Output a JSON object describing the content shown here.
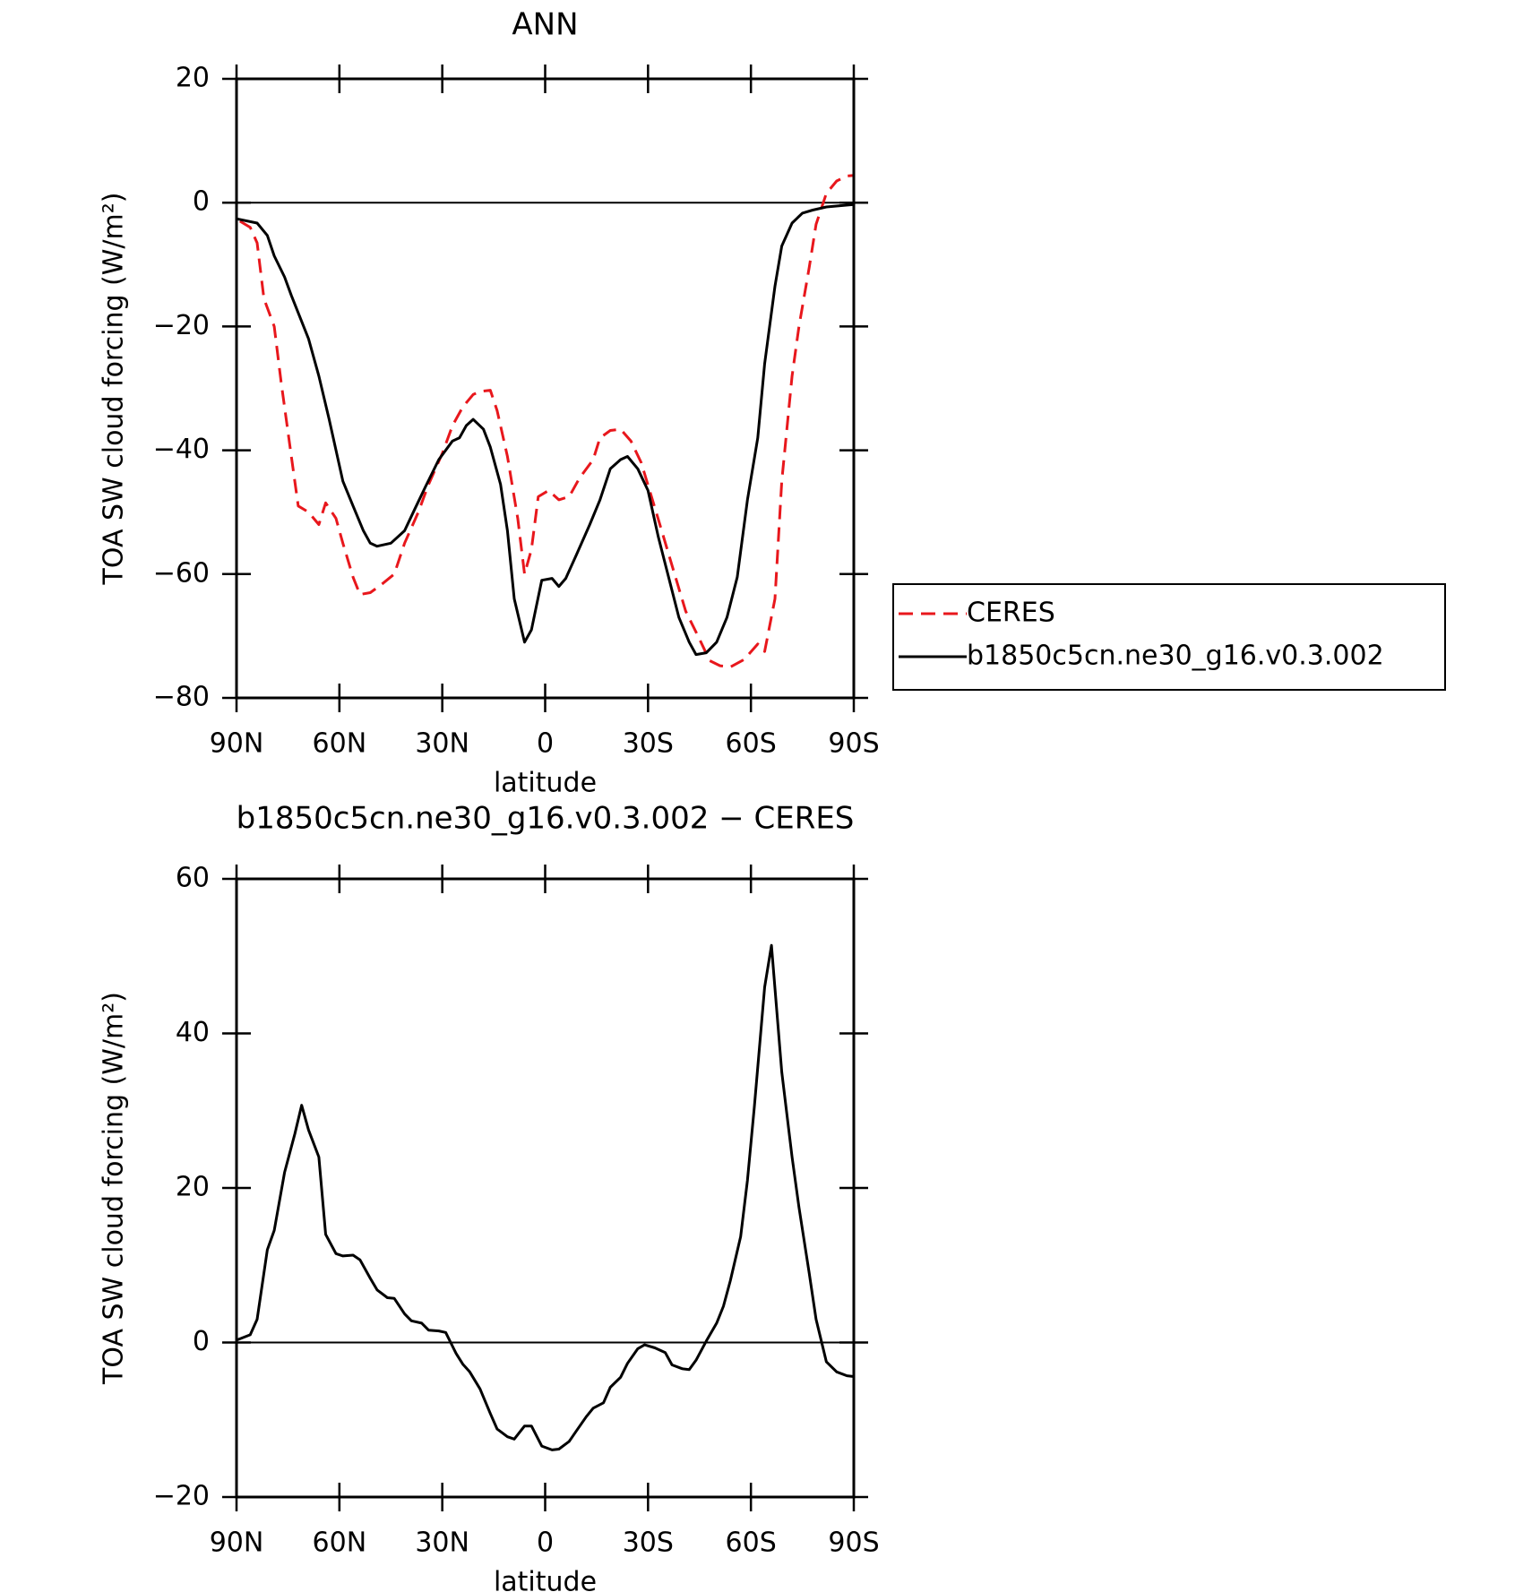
{
  "chart_data": [
    {
      "type": "line",
      "title": "ANN",
      "xlabel": "latitude",
      "ylabel": "TOA SW cloud forcing (W/m²)",
      "xlim": [
        90,
        -90
      ],
      "ylim": [
        -80,
        20
      ],
      "xticks": [
        {
          "value": 90,
          "label": "90N"
        },
        {
          "value": 60,
          "label": "60N"
        },
        {
          "value": 30,
          "label": "30N"
        },
        0,
        {
          "value": -30,
          "label": "30S"
        },
        {
          "value": -60,
          "label": "60S"
        },
        {
          "value": -90,
          "label": "90S"
        }
      ],
      "yticks": [
        {
          "value": -80,
          "label": "−80"
        },
        {
          "value": -60,
          "label": "−60"
        },
        {
          "value": -40,
          "label": "−40"
        },
        {
          "value": -20,
          "label": "−20"
        },
        0,
        20
      ],
      "legend": "right",
      "series": [
        {
          "name": "CERES",
          "color": "#e8171c",
          "linestyle": "dashed",
          "x": [
            89,
            86,
            84,
            82,
            79,
            77,
            74,
            72,
            69,
            66,
            64,
            61,
            59,
            56,
            54,
            51,
            48,
            44,
            41,
            37,
            34,
            30,
            27,
            24,
            21,
            19,
            16,
            14,
            11,
            8,
            6,
            4,
            2,
            -1,
            -4,
            -7,
            -10,
            -14,
            -16,
            -19,
            -22,
            -25,
            -28,
            -31,
            -34,
            -38,
            -41,
            -45,
            -48,
            -51,
            -54,
            -58,
            -62,
            -64,
            -67,
            -69,
            -72,
            -74,
            -77,
            -79,
            -82,
            -85,
            -88,
            -90
          ],
          "values": [
            -3,
            -4,
            -6.5,
            -15.5,
            -20,
            -29,
            -41,
            -49,
            -50,
            -52,
            -48.5,
            -51,
            -55,
            -60.5,
            -63.3,
            -63,
            -61.8,
            -60,
            -55,
            -50,
            -45.5,
            -40.5,
            -36,
            -33,
            -31,
            -30.5,
            -30.3,
            -33.6,
            -41,
            -51,
            -60,
            -56,
            -47.5,
            -46.5,
            -48,
            -47.5,
            -44.5,
            -41.5,
            -38,
            -36.8,
            -36.6,
            -38.5,
            -42,
            -47.5,
            -53,
            -60.5,
            -66,
            -70.5,
            -74,
            -74.8,
            -75,
            -73.8,
            -71.3,
            -72.5,
            -64,
            -45,
            -28,
            -20,
            -10.5,
            -3.5,
            1.5,
            3.5,
            4.3,
            4.4
          ]
        },
        {
          "name": "b1850c5cn.ne30_g16.v0.3.002",
          "color": "#000000",
          "linestyle": "solid",
          "x": [
            90,
            84,
            81,
            79,
            76,
            74,
            69,
            66,
            63,
            59,
            56,
            53,
            51,
            49,
            45,
            41,
            38,
            35,
            31,
            27,
            25,
            23,
            21,
            18,
            16,
            13,
            11,
            9,
            6,
            4,
            1,
            -2,
            -4,
            -6,
            -9,
            -13,
            -16,
            -19,
            -22,
            -24,
            -27,
            -30,
            -33,
            -36,
            -39,
            -42,
            -44,
            -47,
            -50,
            -53,
            -56,
            -59,
            -62,
            -64,
            -67,
            -69,
            -72,
            -75,
            -78,
            -82,
            -90
          ],
          "values": [
            -2.6,
            -3.3,
            -5.3,
            -8.6,
            -12,
            -15,
            -22,
            -28,
            -35,
            -45,
            -49,
            -53,
            -55,
            -55.5,
            -55,
            -53,
            -49.5,
            -46,
            -41.5,
            -38.5,
            -38,
            -36,
            -35,
            -36.6,
            -39.5,
            -45.5,
            -53,
            -64,
            -71,
            -69,
            -61,
            -60.7,
            -62,
            -60.7,
            -57,
            -52,
            -48,
            -43,
            -41.5,
            -41,
            -43,
            -46.5,
            -54,
            -60.5,
            -67,
            -71,
            -73,
            -72.7,
            -71,
            -67,
            -60.5,
            -48,
            -38,
            -26,
            -13.5,
            -7,
            -3.3,
            -1.7,
            -1.2,
            -0.7,
            -0.3
          ]
        }
      ]
    },
    {
      "type": "line",
      "title": "b1850c5cn.ne30_g16.v0.3.002 − CERES",
      "xlabel": "latitude",
      "ylabel": "TOA SW cloud forcing (W/m²)",
      "xlim": [
        90,
        -90
      ],
      "ylim": [
        -20,
        60
      ],
      "xticks": [
        {
          "value": 90,
          "label": "90N"
        },
        {
          "value": 60,
          "label": "60N"
        },
        {
          "value": 30,
          "label": "30N"
        },
        0,
        {
          "value": -30,
          "label": "30S"
        },
        {
          "value": -60,
          "label": "60S"
        },
        {
          "value": -90,
          "label": "90S"
        }
      ],
      "yticks": [
        {
          "value": -20,
          "label": "−20"
        },
        0,
        20,
        40,
        60
      ],
      "series": [
        {
          "color": "#000000",
          "linestyle": "solid",
          "x": [
            90,
            86,
            84,
            81,
            79,
            76,
            73,
            71,
            69,
            66,
            64,
            61,
            59,
            56,
            54,
            51,
            49,
            46,
            44,
            41,
            39,
            36,
            34,
            31,
            29,
            26,
            24,
            22,
            19,
            16,
            14,
            11,
            9,
            6,
            4,
            1,
            -2,
            -4,
            -7,
            -9,
            -12,
            -14,
            -17,
            -19,
            -22,
            -24,
            -27,
            -29,
            -32,
            -35,
            -37,
            -40,
            -42,
            -44,
            -47,
            -50,
            -52,
            -54,
            -57,
            -59,
            -61,
            -64,
            -66,
            -69,
            -72,
            -74,
            -77,
            -79,
            -82,
            -85,
            -88,
            -90
          ],
          "values": [
            0.3,
            1,
            3,
            12,
            14.5,
            22,
            27,
            30.7,
            27.5,
            24,
            14,
            11.5,
            11.2,
            11.3,
            10.7,
            8.3,
            6.8,
            5.8,
            5.7,
            3.7,
            2.8,
            2.5,
            1.6,
            1.5,
            1.3,
            -1.4,
            -2.8,
            -3.8,
            -6,
            -9.2,
            -11.2,
            -12.2,
            -12.5,
            -10.8,
            -10.8,
            -13.4,
            -13.9,
            -13.8,
            -12.8,
            -11.5,
            -9.6,
            -8.5,
            -7.8,
            -5.8,
            -4.5,
            -2.7,
            -0.8,
            -0.3,
            -0.7,
            -1.3,
            -2.9,
            -3.4,
            -3.5,
            -2.3,
            0.2,
            2.5,
            4.7,
            8,
            13.7,
            21,
            30.5,
            46,
            51.4,
            35,
            24,
            17.5,
            9,
            3,
            -2.5,
            -3.8,
            -4.3,
            -4.4
          ]
        }
      ]
    }
  ]
}
